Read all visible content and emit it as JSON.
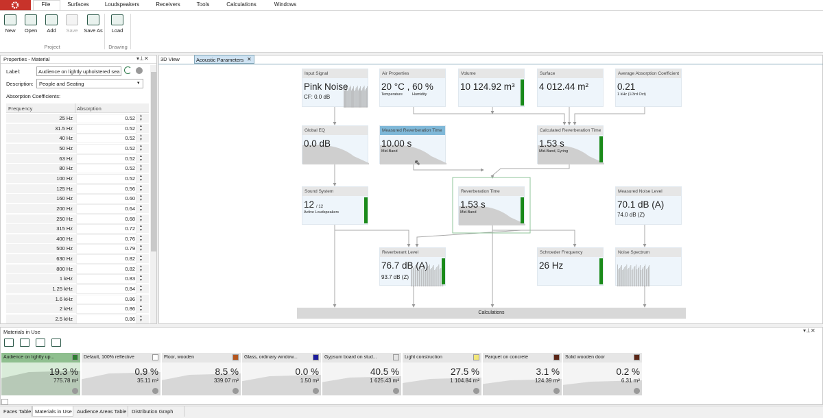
{
  "menu": {
    "tabs": [
      "File",
      "Surfaces",
      "Loudspeakers",
      "Receivers",
      "Tools",
      "Calculations",
      "Windows"
    ]
  },
  "ribbon": {
    "groups": [
      {
        "label": "Project",
        "buttons": [
          "New",
          "Open",
          "Add",
          "Save",
          "Save As"
        ]
      },
      {
        "label": "Drawing",
        "buttons": [
          "Load"
        ]
      }
    ]
  },
  "properties": {
    "title": "Properties - Material",
    "label_caption": "Label:",
    "label_value": "Audience on lightly upholstered sea",
    "description_caption": "Description:",
    "description_value": "People and Seating",
    "coefficients_caption": "Absorption Coefficients:",
    "columns": [
      "Frequency",
      "Absorption"
    ],
    "rows": [
      [
        "25 Hz",
        "0.52"
      ],
      [
        "31.5 Hz",
        "0.52"
      ],
      [
        "40 Hz",
        "0.52"
      ],
      [
        "50 Hz",
        "0.52"
      ],
      [
        "63 Hz",
        "0.52"
      ],
      [
        "80 Hz",
        "0.52"
      ],
      [
        "100 Hz",
        "0.52"
      ],
      [
        "125 Hz",
        "0.56"
      ],
      [
        "160 Hz",
        "0.60"
      ],
      [
        "200 Hz",
        "0.64"
      ],
      [
        "250 Hz",
        "0.68"
      ],
      [
        "315 Hz",
        "0.72"
      ],
      [
        "400 Hz",
        "0.76"
      ],
      [
        "500 Hz",
        "0.79"
      ],
      [
        "630 Hz",
        "0.82"
      ],
      [
        "800 Hz",
        "0.82"
      ],
      [
        "1 kHz",
        "0.83"
      ],
      [
        "1.25 kHz",
        "0.84"
      ],
      [
        "1.6 kHz",
        "0.86"
      ],
      [
        "2 kHz",
        "0.86"
      ],
      [
        "2.5 kHz",
        "0.86"
      ]
    ]
  },
  "view_tabs": [
    "3D View",
    "Acoustic Parameters"
  ],
  "nodes": [
    {
      "title": "Input Signal",
      "value": "Pink Noise",
      "sub": "CF:  0.0  dB"
    },
    {
      "title": "Air Properties",
      "value": "20 °C ,  60 %",
      "labels": [
        "Temperature",
        "Humidity"
      ]
    },
    {
      "title": "Volume",
      "value": "10 124.92 m³"
    },
    {
      "title": "Surface",
      "value": "4 012.44 m²"
    },
    {
      "title": "Average Absorption Coefficient",
      "value": "0.21",
      "sub": "1 kHz (1/3rd Oct)"
    },
    {
      "title": "Global EQ",
      "value": "0.0  dB"
    },
    {
      "title": "Measured Reverberation Time",
      "value": "10.00  s",
      "sub": "Mid-Band"
    },
    {
      "title": "Calculated Reverberation Time",
      "value": "1.53  s",
      "sub": "Mid-Band, Eyring"
    },
    {
      "title": "Sound System",
      "value": "12",
      "suffix": "/ 12",
      "sub": "Active Loudspeakers"
    },
    {
      "title": "Reverberation Time",
      "value": "1.53  s",
      "sub": "Mid-Band"
    },
    {
      "title": "Measured Noise Level",
      "value": "70.1  dB (A)",
      "sub": "74.0  dB (Z)"
    },
    {
      "title": "Reverberant Level",
      "value": "76.7  dB (A)",
      "sub": "93.7  dB (Z)"
    },
    {
      "title": "Schroeder Frequency",
      "value": "26  Hz"
    },
    {
      "title": "Noise Spectrum"
    }
  ],
  "calculations": "Calculations",
  "materials": {
    "title": "Materials in Use",
    "items": [
      {
        "name": "Audience on lightly up...",
        "percent": "19.3 %",
        "area": "775.78 m²",
        "color": "#2e7d32"
      },
      {
        "name": "Default, 100% reflective",
        "percent": "0.9 %",
        "area": "35.11 m²",
        "color": "#ffffff"
      },
      {
        "name": "Floor, wooden",
        "percent": "8.5 %",
        "area": "339.07 m²",
        "color": "#b4561e"
      },
      {
        "name": "Glass, ordinary window...",
        "percent": "0.0 %",
        "area": "1.50 m²",
        "color": "#1c1c9c"
      },
      {
        "name": "Gypsum board on stud...",
        "percent": "40.5 %",
        "area": "1 625.43 m²",
        "color": "#e4e4e4"
      },
      {
        "name": "Light construction",
        "percent": "27.5 %",
        "area": "1 104.84 m²",
        "color": "#f2e77a"
      },
      {
        "name": "Parquet on concrete",
        "percent": "3.1 %",
        "area": "124.39 m²",
        "color": "#5b2616"
      },
      {
        "name": "Solid wooden door",
        "percent": "0.2 %",
        "area": "6.31 m²",
        "color": "#5b2616"
      }
    ]
  },
  "bottom_tabs": [
    "Faces Table",
    "Materials in Use",
    "Audience Areas Table",
    "Distribution Graph"
  ]
}
